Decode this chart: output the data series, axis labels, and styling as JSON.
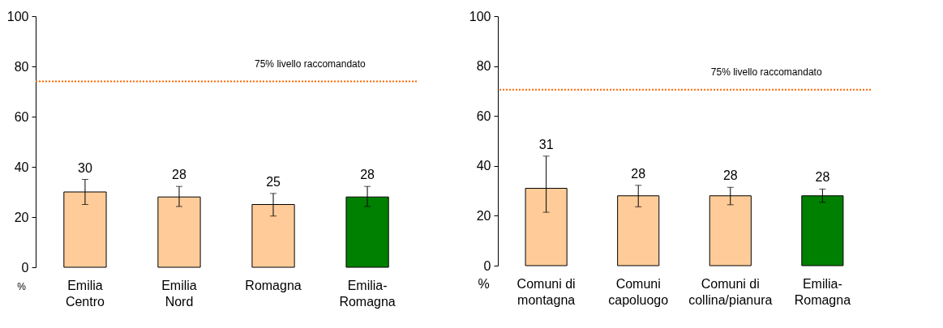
{
  "chart_data": [
    {
      "type": "bar",
      "ylabel": "%",
      "categories": [
        "Emilia Centro",
        "Emilia Nord",
        "Romagna",
        "Emilia-Romagna"
      ],
      "values": [
        30,
        28,
        25,
        28
      ],
      "colors": [
        "#ffcc99",
        "#ffcc99",
        "#ffcc99",
        "#008000"
      ],
      "errors": [
        [
          25,
          35
        ],
        [
          24.2,
          32.2
        ],
        [
          20.4,
          29.4
        ],
        [
          24.2,
          32.2
        ]
      ],
      "data_labels": true,
      "ylim": [
        0,
        100
      ],
      "yticks": [
        0,
        20,
        40,
        60,
        80,
        100
      ],
      "grid": false,
      "ref_lines": [
        {
          "axis": "y",
          "value": 74,
          "label": "75% livello raccomandato",
          "color": "#ff6600",
          "line_style": "dotted"
        }
      ]
    },
    {
      "type": "bar",
      "ylabel": "%",
      "categories": [
        "Comuni di montagna",
        "Comuni capoluogo",
        "Comuni di collina/pianura",
        "Emilia-Romagna"
      ],
      "values": [
        31,
        28,
        28,
        28
      ],
      "colors": [
        "#ffcc99",
        "#ffcc99",
        "#ffcc99",
        "#008000"
      ],
      "errors": [
        [
          21.4,
          43.9
        ],
        [
          23.6,
          32.2
        ],
        [
          24.4,
          31.4
        ],
        [
          25.4,
          30.7
        ]
      ],
      "data_labels": true,
      "ylim": [
        0,
        100
      ],
      "yticks": [
        0,
        20,
        40,
        60,
        80,
        100
      ],
      "grid": false,
      "ref_lines": [
        {
          "axis": "y",
          "value": 70.5,
          "label": "75% livello raccomandato",
          "color": "#ff6600",
          "line_style": "dotted"
        }
      ]
    }
  ]
}
